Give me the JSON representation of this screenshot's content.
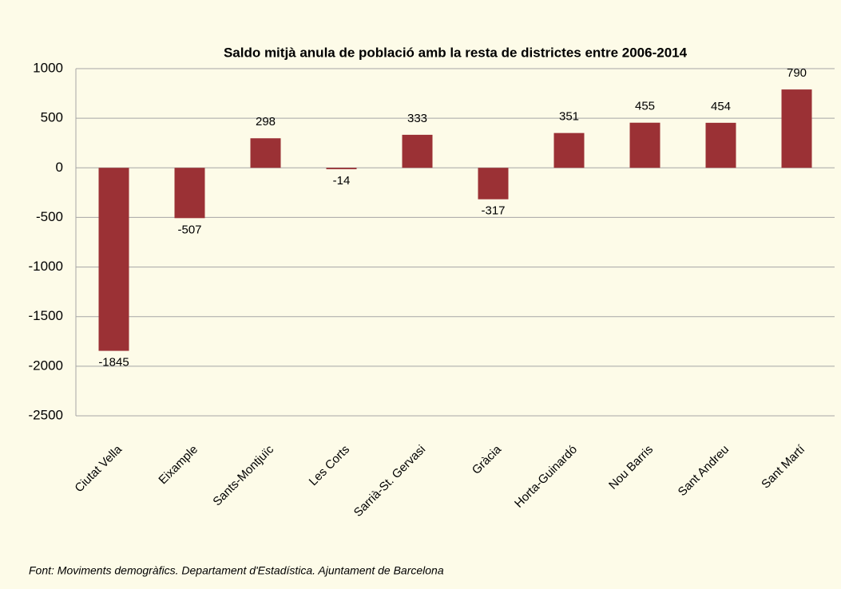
{
  "chart_data": {
    "type": "bar",
    "title": "Saldo mitjà anula de població amb la resta de districtes entre 2006-2014",
    "categories": [
      "Ciutat Vella",
      "Eixample",
      "Sants-Montjuïc",
      "Les Corts",
      "Sarrià-St. Gervasi",
      "Gràcia",
      "Horta-Guinardó",
      "Nou Barris",
      "Sant Andreu",
      "Sant Martí"
    ],
    "values": [
      -1845,
      -507,
      298,
      -14,
      333,
      -317,
      351,
      455,
      454,
      790
    ],
    "color": "#9b3135",
    "ylim": [
      -2500,
      1000
    ],
    "yticks": [
      -2500,
      -2000,
      -1500,
      -1000,
      -500,
      0,
      500,
      1000
    ],
    "grid": true,
    "source": "Font: Moviments demogràfics. Departament d'Estadística. Ajuntament de Barcelona"
  }
}
